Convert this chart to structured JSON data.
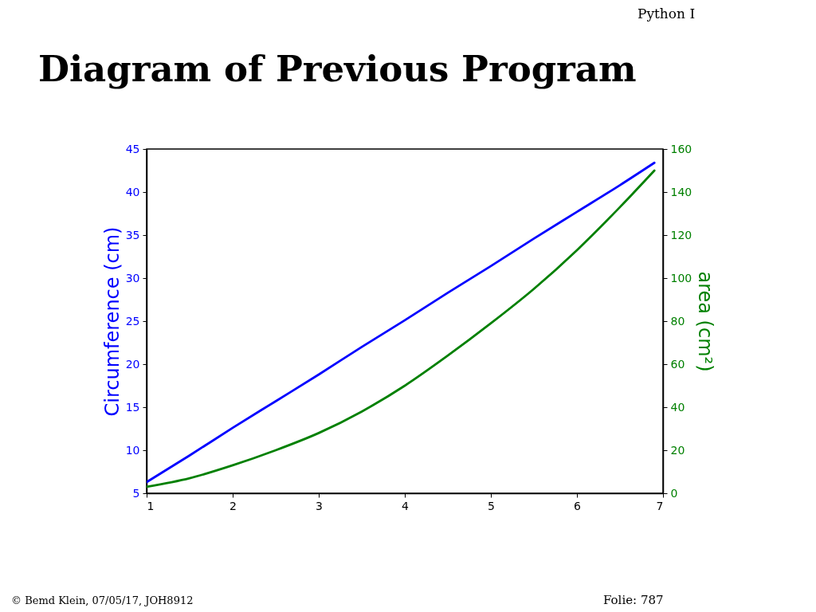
{
  "chart_data": {
    "type": "line",
    "title": "Diagram of Previous Program",
    "ylabel": "Circumference (cm)",
    "y2label": "area (cm²)",
    "x": [
      1,
      1.5,
      2,
      2.5,
      3,
      3.5,
      4,
      4.5,
      5,
      5.5,
      6,
      6.5,
      6.9
    ],
    "series": [
      {
        "color": "#0000ff",
        "values": [
          6.3,
          9.4,
          12.6,
          15.7,
          18.8,
          22.0,
          25.1,
          28.3,
          31.4,
          34.6,
          37.7,
          40.8,
          43.4
        ]
      },
      {
        "color": "#008000",
        "axis": "y2",
        "values": [
          3,
          7,
          13,
          20,
          28,
          38,
          50,
          64,
          79,
          95,
          113,
          133,
          150
        ]
      }
    ],
    "xlim": [
      1,
      7
    ],
    "xticks": [
      1,
      2,
      3,
      4,
      5,
      6,
      7
    ],
    "ylim": [
      5,
      45
    ],
    "yticks": [
      5,
      10,
      15,
      20,
      25,
      30,
      35,
      40,
      45
    ],
    "y2lim": [
      0,
      160
    ],
    "y2ticks": [
      0,
      20,
      40,
      60,
      80,
      100,
      120,
      140,
      160
    ],
    "grid": false,
    "annotations": [
      "Python I",
      "© Bemd Klein, 07/05/17, JOH8912",
      "Folie: 787"
    ]
  }
}
